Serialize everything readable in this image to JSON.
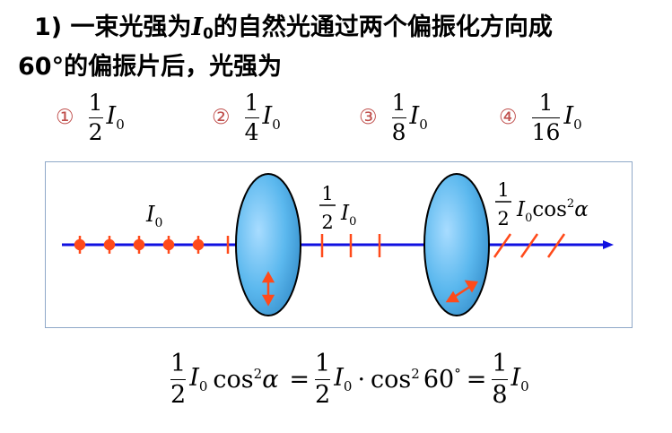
{
  "question": {
    "line1_prefix": "1) 一束光强为",
    "intensity_symbol": "I",
    "intensity_sub": "0",
    "line1_suffix": "的自然光通过两个偏振化方向成",
    "line2": "60°的偏振片后，光强为"
  },
  "options": [
    {
      "marker": "①",
      "numerator": "1",
      "denominator": "2",
      "symbol": "I",
      "sub": "0"
    },
    {
      "marker": "②",
      "numerator": "1",
      "denominator": "4",
      "symbol": "I",
      "sub": "0"
    },
    {
      "marker": "③",
      "numerator": "1",
      "denominator": "8",
      "symbol": "I",
      "sub": "0"
    },
    {
      "marker": "④",
      "numerator": "1",
      "denominator": "16",
      "symbol": "I",
      "sub": "0"
    }
  ],
  "diagram": {
    "label_incident": {
      "symbol": "I",
      "sub": "0"
    },
    "label_after_first": {
      "numerator": "1",
      "denominator": "2",
      "symbol": "I",
      "sub": "0"
    },
    "label_after_second": {
      "numerator": "1",
      "denominator": "2",
      "symbol": "I",
      "sub": "0",
      "trig": "cos",
      "power": "2",
      "angle": "α"
    },
    "colors": {
      "beam": "#1010e0",
      "polarizer": "#5bb8ee",
      "marks": "#ff4a1a",
      "frame": "#8fa8c8"
    }
  },
  "formula": {
    "f1_num": "1",
    "f1_den": "2",
    "sym": "I",
    "sub": "0",
    "cos": "cos",
    "sq": "2",
    "alpha": "α",
    "eq": "=",
    "f2_num": "1",
    "f2_den": "2",
    "dot": "·",
    "angle": "60",
    "deg": "°",
    "f3_num": "1",
    "f3_den": "8"
  }
}
